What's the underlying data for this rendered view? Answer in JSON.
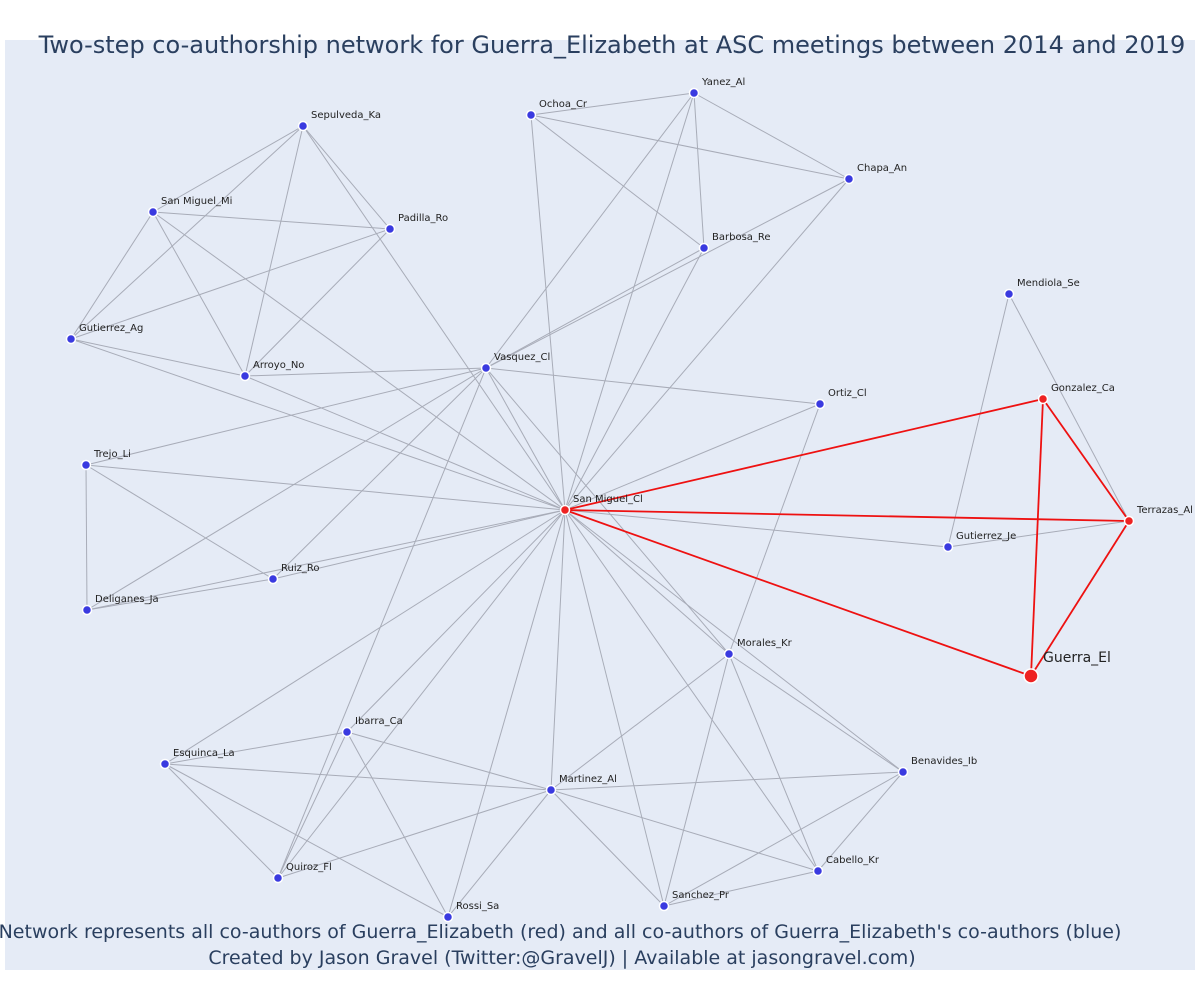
{
  "title": "Two-step co-authorship network for Guerra_Elizabeth at ASC meetings between 2014 and 2019",
  "caption_line1": "Network represents all co-authors of Guerra_Elizabeth (red) and all co-authors of Guerra_Elizabeth's co-authors (blue)",
  "caption_line2": "Created by Jason Gravel (Twitter:@GravelJ) | Available at jasongravel.com)",
  "colors": {
    "ego": "#ee1111",
    "second_step": "#3a3ae0",
    "edge": "#a8acb8",
    "background": "#e5ebf6"
  },
  "network": {
    "nodes": [
      {
        "id": "Guerra_El",
        "group": "ego"
      },
      {
        "id": "San Miguel_Cl",
        "group": "coauthor"
      },
      {
        "id": "Gonzalez_Ca",
        "group": "coauthor"
      },
      {
        "id": "Terrazas_Al",
        "group": "coauthor"
      },
      {
        "id": "Yanez_Al",
        "group": "second"
      },
      {
        "id": "Ochoa_Cr",
        "group": "second"
      },
      {
        "id": "Chapa_An",
        "group": "second"
      },
      {
        "id": "Barbosa_Re",
        "group": "second"
      },
      {
        "id": "Sepulveda_Ka",
        "group": "second"
      },
      {
        "id": "San Miguel_Mi",
        "group": "second"
      },
      {
        "id": "Padilla_Ro",
        "group": "second"
      },
      {
        "id": "Gutierrez_Ag",
        "group": "second"
      },
      {
        "id": "Arroyo_No",
        "group": "second"
      },
      {
        "id": "Vasquez_Cl",
        "group": "second"
      },
      {
        "id": "Mendiola_Se",
        "group": "second"
      },
      {
        "id": "Ortiz_Cl",
        "group": "second"
      },
      {
        "id": "Trejo_Li",
        "group": "second"
      },
      {
        "id": "Gutierrez_Je",
        "group": "second"
      },
      {
        "id": "Ruiz_Ro",
        "group": "second"
      },
      {
        "id": "Deliganes_Ja",
        "group": "second"
      },
      {
        "id": "Morales_Kr",
        "group": "second"
      },
      {
        "id": "Ibarra_Ca",
        "group": "second"
      },
      {
        "id": "Esquinca_La",
        "group": "second"
      },
      {
        "id": "Martinez_Al",
        "group": "second"
      },
      {
        "id": "Benavides_Ib",
        "group": "second"
      },
      {
        "id": "Cabello_Kr",
        "group": "second"
      },
      {
        "id": "Quiroz_Fl",
        "group": "second"
      },
      {
        "id": "Sanchez_Pr",
        "group": "second"
      },
      {
        "id": "Rossi_Sa",
        "group": "second"
      }
    ],
    "red_edges": [
      [
        "Guerra_El",
        "San Miguel_Cl"
      ],
      [
        "Guerra_El",
        "Gonzalez_Ca"
      ],
      [
        "Guerra_El",
        "Terrazas_Al"
      ],
      [
        "San Miguel_Cl",
        "Gonzalez_Ca"
      ],
      [
        "San Miguel_Cl",
        "Terrazas_Al"
      ],
      [
        "Gonzalez_Ca",
        "Terrazas_Al"
      ]
    ],
    "gray_edges": [
      [
        "San Miguel_Cl",
        "Sepulveda_Ka"
      ],
      [
        "San Miguel_Cl",
        "San Miguel_Mi"
      ],
      [
        "San Miguel_Cl",
        "Gutierrez_Ag"
      ],
      [
        "San Miguel_Cl",
        "Arroyo_No"
      ],
      [
        "San Miguel_Cl",
        "Vasquez_Cl"
      ],
      [
        "San Miguel_Cl",
        "Trejo_Li"
      ],
      [
        "San Miguel_Cl",
        "Ruiz_Ro"
      ],
      [
        "San Miguel_Cl",
        "Deliganes_Ja"
      ],
      [
        "San Miguel_Cl",
        "Ortiz_Cl"
      ],
      [
        "San Miguel_Cl",
        "Gutierrez_Je"
      ],
      [
        "San Miguel_Cl",
        "Morales_Kr"
      ],
      [
        "San Miguel_Cl",
        "Benavides_Ib"
      ],
      [
        "San Miguel_Cl",
        "Cabello_Kr"
      ],
      [
        "San Miguel_Cl",
        "Sanchez_Pr"
      ],
      [
        "San Miguel_Cl",
        "Martinez_Al"
      ],
      [
        "San Miguel_Cl",
        "Rossi_Sa"
      ],
      [
        "San Miguel_Cl",
        "Quiroz_Fl"
      ],
      [
        "San Miguel_Cl",
        "Ibarra_Ca"
      ],
      [
        "San Miguel_Cl",
        "Esquinca_La"
      ],
      [
        "San Miguel_Cl",
        "Ochoa_Cr"
      ],
      [
        "San Miguel_Cl",
        "Yanez_Al"
      ],
      [
        "San Miguel_Cl",
        "Chapa_An"
      ],
      [
        "San Miguel_Cl",
        "Barbosa_Re"
      ],
      [
        "Ochoa_Cr",
        "Yanez_Al"
      ],
      [
        "Ochoa_Cr",
        "Chapa_An"
      ],
      [
        "Ochoa_Cr",
        "Barbosa_Re"
      ],
      [
        "Yanez_Al",
        "Chapa_An"
      ],
      [
        "Yanez_Al",
        "Barbosa_Re"
      ],
      [
        "Yanez_Al",
        "Vasquez_Cl"
      ],
      [
        "Chapa_An",
        "Vasquez_Cl"
      ],
      [
        "Barbosa_Re",
        "Vasquez_Cl"
      ],
      [
        "Sepulveda_Ka",
        "San Miguel_Mi"
      ],
      [
        "Sepulveda_Ka",
        "Padilla_Ro"
      ],
      [
        "Sepulveda_Ka",
        "Gutierrez_Ag"
      ],
      [
        "Sepulveda_Ka",
        "Arroyo_No"
      ],
      [
        "San Miguel_Mi",
        "Padilla_Ro"
      ],
      [
        "San Miguel_Mi",
        "Gutierrez_Ag"
      ],
      [
        "San Miguel_Mi",
        "Arroyo_No"
      ],
      [
        "Padilla_Ro",
        "Gutierrez_Ag"
      ],
      [
        "Padilla_Ro",
        "Arroyo_No"
      ],
      [
        "Gutierrez_Ag",
        "Arroyo_No"
      ],
      [
        "Arroyo_No",
        "Vasquez_Cl"
      ],
      [
        "Vasquez_Cl",
        "Ortiz_Cl"
      ],
      [
        "Vasquez_Cl",
        "Trejo_Li"
      ],
      [
        "Vasquez_Cl",
        "Ruiz_Ro"
      ],
      [
        "Vasquez_Cl",
        "Deliganes_Ja"
      ],
      [
        "Vasquez_Cl",
        "Quiroz_Fl"
      ],
      [
        "Vasquez_Cl",
        "Morales_Kr"
      ],
      [
        "Trejo_Li",
        "Deliganes_Ja"
      ],
      [
        "Trejo_Li",
        "Ruiz_Ro"
      ],
      [
        "Ruiz_Ro",
        "Deliganes_Ja"
      ],
      [
        "Mendiola_Se",
        "Gutierrez_Je"
      ],
      [
        "Mendiola_Se",
        "Terrazas_Al"
      ],
      [
        "Gutierrez_Je",
        "Terrazas_Al"
      ],
      [
        "Ortiz_Cl",
        "Morales_Kr"
      ],
      [
        "Morales_Kr",
        "Martinez_Al"
      ],
      [
        "Morales_Kr",
        "Benavides_Ib"
      ],
      [
        "Morales_Kr",
        "Cabello_Kr"
      ],
      [
        "Morales_Kr",
        "Sanchez_Pr"
      ],
      [
        "Esquinca_La",
        "Ibarra_Ca"
      ],
      [
        "Esquinca_La",
        "Martinez_Al"
      ],
      [
        "Esquinca_La",
        "Quiroz_Fl"
      ],
      [
        "Esquinca_La",
        "Rossi_Sa"
      ],
      [
        "Ibarra_Ca",
        "Martinez_Al"
      ],
      [
        "Ibarra_Ca",
        "Quiroz_Fl"
      ],
      [
        "Ibarra_Ca",
        "Rossi_Sa"
      ],
      [
        "Martinez_Al",
        "Quiroz_Fl"
      ],
      [
        "Martinez_Al",
        "Rossi_Sa"
      ],
      [
        "Martinez_Al",
        "Benavides_Ib"
      ],
      [
        "Martinez_Al",
        "Cabello_Kr"
      ],
      [
        "Martinez_Al",
        "Sanchez_Pr"
      ],
      [
        "Benavides_Ib",
        "Cabello_Kr"
      ],
      [
        "Benavides_Ib",
        "Sanchez_Pr"
      ],
      [
        "Cabello_Kr",
        "Sanchez_Pr"
      ]
    ]
  }
}
